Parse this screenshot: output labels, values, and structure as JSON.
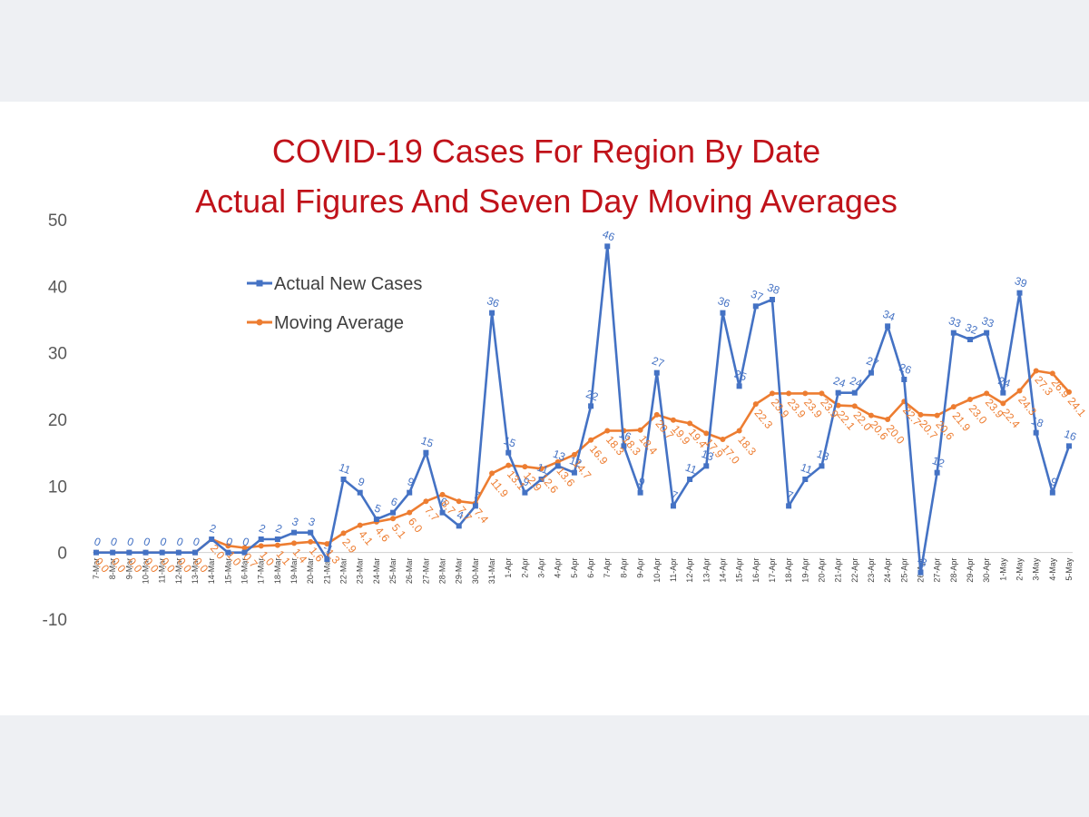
{
  "chart_data": {
    "type": "line",
    "title": [
      "COVID-19 Cases For Region By Date",
      "Actual Figures And Seven Day Moving Averages"
    ],
    "xlabel": "",
    "ylabel": "",
    "ylim": [
      -10,
      50
    ],
    "yticks": [
      -10,
      0,
      10,
      20,
      30,
      40,
      50
    ],
    "grid": false,
    "legend_position": "top-left",
    "categories": [
      "7-Mar",
      "8-Mar",
      "9-Mar",
      "10-Mar",
      "11-Mar",
      "12-Mar",
      "13-Mar",
      "14-Mar",
      "15-Mar",
      "16-Mar",
      "17-Mar",
      "18-Mar",
      "19-Mar",
      "20-Mar",
      "21-Mar",
      "22-Mar",
      "23-Mar",
      "24-Mar",
      "25-Mar",
      "26-Mar",
      "27-Mar",
      "28-Mar",
      "29-Mar",
      "30-Mar",
      "31-Mar",
      "1-Apr",
      "2-Apr",
      "3-Apr",
      "4-Apr",
      "5-Apr",
      "6-Apr",
      "7-Apr",
      "8-Apr",
      "9-Apr",
      "10-Apr",
      "11-Apr",
      "12-Apr",
      "13-Apr",
      "14-Apr",
      "15-Apr",
      "16-Apr",
      "17-Apr",
      "18-Apr",
      "19-Apr",
      "20-Apr",
      "21-Apr",
      "22-Apr",
      "23-Apr",
      "24-Apr",
      "25-Apr",
      "26-Apr",
      "27-Apr",
      "28-Apr",
      "29-Apr",
      "30-Apr",
      "1-May",
      "2-May",
      "3-May",
      "4-May",
      "5-May"
    ],
    "series": [
      {
        "name": "Actual New Cases",
        "color": "#4472c4",
        "marker": "square",
        "values": [
          0,
          0,
          0,
          0,
          0,
          0,
          0,
          2,
          0,
          0,
          2,
          2,
          3,
          3,
          -1,
          11,
          9,
          5,
          6,
          9,
          15,
          6,
          4,
          7,
          36,
          15,
          9,
          11,
          13,
          12,
          22,
          46,
          16,
          9,
          27,
          7,
          11,
          13,
          36,
          25,
          37,
          38,
          7,
          11,
          13,
          24,
          24,
          27,
          34,
          26,
          -3,
          12,
          33,
          32,
          33,
          24,
          39,
          18,
          9,
          16
        ]
      },
      {
        "name": "Moving Average",
        "color": "#ed7d31",
        "marker": "circle",
        "values": [
          0.0,
          0.0,
          0.0,
          0.0,
          0.0,
          0.0,
          0.0,
          2.0,
          1.0,
          0.7,
          1.0,
          1.1,
          1.4,
          1.6,
          1.3,
          2.9,
          4.1,
          4.6,
          5.1,
          6.0,
          7.7,
          8.7,
          7.7,
          7.4,
          11.9,
          13.1,
          12.9,
          12.6,
          13.6,
          14.7,
          16.9,
          18.3,
          18.3,
          18.4,
          20.7,
          19.9,
          19.4,
          17.9,
          17.0,
          18.3,
          22.3,
          23.9,
          23.9,
          23.9,
          23.9,
          22.1,
          22.0,
          20.6,
          20.0,
          22.7,
          20.7,
          20.6,
          21.9,
          23.0,
          23.9,
          22.4,
          24.3,
          27.3,
          26.9,
          24.1
        ]
      }
    ],
    "labels_actual": [
      "0",
      "0",
      "0",
      "0",
      "0",
      "0",
      "0",
      "2",
      "0",
      "0",
      "2",
      "2",
      "3",
      "3",
      "-1",
      "11",
      "9",
      "5",
      "6",
      "9",
      "15",
      "6",
      "4",
      "7",
      "36",
      "15",
      "9",
      "11",
      "13",
      "12",
      "22",
      "46",
      "16",
      "9",
      "27",
      "7",
      "11",
      "13",
      "36",
      "25",
      "37",
      "38",
      "7",
      "11",
      "13",
      "24",
      "24",
      "27",
      "34",
      "26",
      "-3",
      "12",
      "33",
      "32",
      "33",
      "24",
      "39",
      "18",
      "9",
      "16"
    ],
    "labels_avg": [
      "0.0",
      "0.0",
      "0.0",
      "0.0",
      "0.0",
      "0.0",
      "0.0",
      "2.0",
      "1.0",
      "0.7",
      "1.0",
      "1.1",
      "1.4",
      "1.6",
      "1.3",
      "2.9",
      "4.1",
      "4.6",
      "5.1",
      "6.0",
      "7.7",
      "8.7",
      "7.7",
      "7.4",
      "11.9",
      "13.1",
      "12.9",
      "12.6",
      "13.6",
      "14.7",
      "16.9",
      "18.3",
      "18.3",
      "18.4",
      "20.7",
      "19.9",
      "19.4",
      "17.9",
      "17.0",
      "18.3",
      "22.3",
      "23.9",
      "23.9",
      "23.9",
      "23.9",
      "22.1",
      "22.0",
      "20.6",
      "20.0",
      "22.7",
      "20.7",
      "20.6",
      "21.9",
      "23.0",
      "23.9",
      "22.4",
      "24.3",
      "27.3",
      "26.9",
      "24.1"
    ]
  }
}
